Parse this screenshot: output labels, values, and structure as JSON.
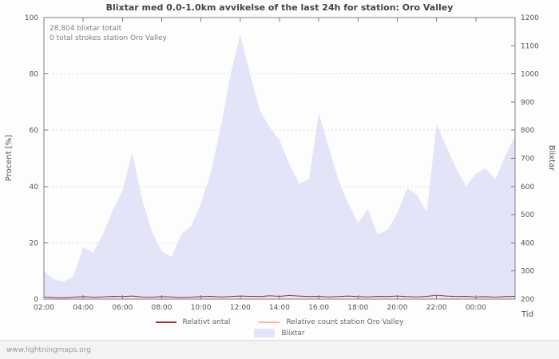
{
  "title": "Blixtar med 0.0-1.0km avvikelse of the last 24h for station: Oro Valley",
  "annotations": {
    "total": "28,804 blixtar totalt",
    "station_total": "0 total strokes station Oro Valley"
  },
  "axes": {
    "left_label": "Procent [%]",
    "right_label": "Blixtar",
    "x_label": "Tid"
  },
  "legend": [
    {
      "label": "Relativt antal",
      "type": "line",
      "color": "#993333"
    },
    {
      "label": "Relative count station Oro Valley",
      "type": "line",
      "color": "#ffb2b2"
    },
    {
      "label": "Blixtar",
      "type": "area",
      "color": "#e4e4f9"
    }
  ],
  "footer": "www.lightningmaps.org",
  "chart_data": {
    "type": "area",
    "title": "Blixtar med 0.0-1.0km avvikelse of the last 24h for station: Oro Valley",
    "x_unit": "hours from 02:00",
    "x_range": [
      0,
      24
    ],
    "x_tick_pos": [
      0,
      2,
      4,
      6,
      8,
      10,
      12,
      14,
      16,
      18,
      20,
      22
    ],
    "x_ticks": [
      "02:00",
      "04:00",
      "06:00",
      "08:00",
      "10:00",
      "12:00",
      "14:00",
      "16:00",
      "18:00",
      "20:00",
      "22:00",
      "00:00"
    ],
    "left_axis": {
      "label": "Procent [%]",
      "range": [
        0,
        100
      ],
      "ticks": [
        0,
        20,
        40,
        60,
        80,
        100
      ]
    },
    "right_axis": {
      "label": "Blixtar",
      "range": [
        200,
        1200
      ],
      "ticks": [
        200,
        300,
        400,
        500,
        600,
        700,
        800,
        900,
        1000,
        1100,
        1200
      ]
    },
    "grid": "horizontal-dotted",
    "legend_position": "bottom",
    "x": [
      0,
      0.5,
      1,
      1.5,
      2,
      2.5,
      3,
      3.5,
      4,
      4.5,
      5,
      5.5,
      6,
      6.5,
      7,
      7.5,
      8,
      8.5,
      9,
      9.5,
      10,
      10.5,
      11,
      11.5,
      12,
      12.5,
      13,
      13.5,
      14,
      14.5,
      15,
      15.5,
      16,
      16.5,
      17,
      17.5,
      18,
      18.5,
      19,
      19.5,
      20,
      20.5,
      21,
      21.5,
      22,
      22.5,
      23,
      23.5,
      24
    ],
    "series": [
      {
        "name": "Blixtar",
        "axis": "right",
        "style": "area",
        "color": "#e4e4f9",
        "values": [
          300,
          270,
          262,
          280,
          385,
          365,
          430,
          515,
          585,
          720,
          555,
          440,
          370,
          350,
          430,
          460,
          540,
          650,
          810,
          995,
          1140,
          1000,
          870,
          810,
          765,
          680,
          610,
          625,
          860,
          740,
          625,
          540,
          470,
          520,
          430,
          445,
          505,
          595,
          570,
          510,
          820,
          740,
          665,
          600,
          645,
          665,
          625,
          710,
          780
        ]
      },
      {
        "name": "Relativt antal",
        "axis": "left",
        "style": "line",
        "color": "#993333",
        "values": [
          0.8,
          0.6,
          0.5,
          0.7,
          0.9,
          0.7,
          0.8,
          1.0,
          0.9,
          1.1,
          0.8,
          0.7,
          0.9,
          0.8,
          0.6,
          0.7,
          0.9,
          1.0,
          0.8,
          0.9,
          1.1,
          1.0,
          0.9,
          1.2,
          1.0,
          1.3,
          1.1,
          0.9,
          1.0,
          0.8,
          0.9,
          1.1,
          0.9,
          0.8,
          1.0,
          0.9,
          1.1,
          0.9,
          0.8,
          1.0,
          1.4,
          1.1,
          0.9,
          1.0,
          0.8,
          0.9,
          0.7,
          0.9,
          1.0
        ]
      },
      {
        "name": "Relative count station Oro Valley",
        "axis": "left",
        "style": "line",
        "color": "#ffb2b2",
        "values": [
          0,
          0,
          0,
          0,
          0,
          0,
          0,
          0,
          0,
          0,
          0,
          0,
          0,
          0,
          0,
          0,
          0,
          0,
          0,
          0,
          0,
          0,
          0,
          0,
          0,
          0,
          0,
          0,
          0,
          0,
          0,
          0,
          0,
          0,
          0,
          0,
          0,
          0,
          0,
          0,
          0,
          0,
          0,
          0,
          0,
          0,
          0,
          0,
          0
        ]
      }
    ]
  }
}
